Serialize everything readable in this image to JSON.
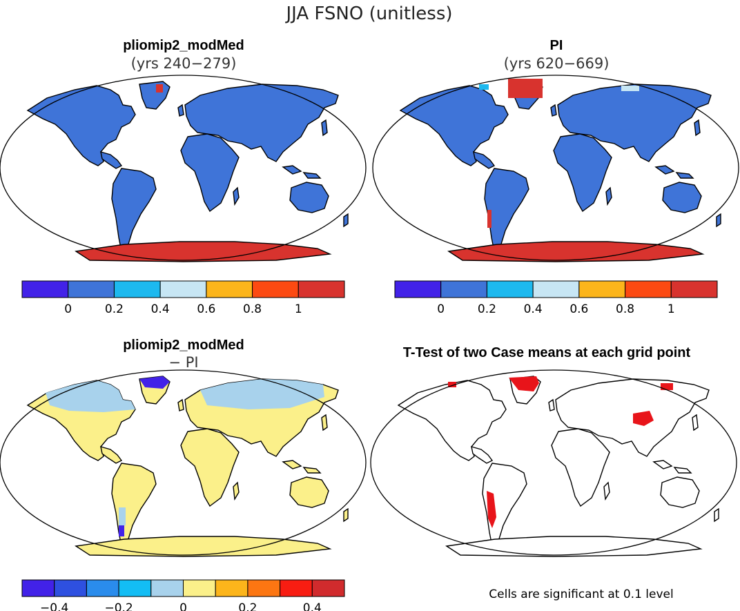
{
  "title": "JJA FSNO (unitless)",
  "panels": [
    {
      "id": "p1",
      "title": "pliomip2_modMed",
      "subtitle": "(yrs 240−279)",
      "land_color": "#3f74d8",
      "antarctica_color": "#d8332e",
      "highlights": [
        "#d8332e"
      ]
    },
    {
      "id": "p2",
      "title": "PI",
      "subtitle": "(yrs 620−669)",
      "land_color": "#3f74d8",
      "antarctica_color": "#d8332e",
      "highlights": [
        "#d8332e",
        "#1db9ef"
      ]
    },
    {
      "id": "p3",
      "title": "pliomip2_modMed",
      "subtitle": "− PI",
      "land_color": "#fbf08a",
      "antarctica_color": "#fbf08a",
      "highlights": [
        "#a8d2ec",
        "#4222e8"
      ]
    },
    {
      "id": "p4",
      "title": "T-Test of two Case means at each grid point",
      "subtitle": "",
      "land_color": "#ffffff",
      "antarctica_color": "#ffffff",
      "highlights": [
        "#e8141a"
      ],
      "note": "Cells are significant at 0.1 level"
    }
  ],
  "colorbars": [
    {
      "id": "cb1",
      "colors": [
        "#4222e8",
        "#3f74d8",
        "#1db9ef",
        "#c7e6f4",
        "#fcb51b",
        "#fc4a12",
        "#d8332e"
      ],
      "ticks": [
        "0",
        "0.2",
        "0.4",
        "0.6",
        "0.8",
        "1"
      ]
    },
    {
      "id": "cb2",
      "colors": [
        "#4222e8",
        "#3f74d8",
        "#1db9ef",
        "#c7e6f4",
        "#fcb51b",
        "#fc4a12",
        "#d8332e"
      ],
      "ticks": [
        "0",
        "0.2",
        "0.4",
        "0.6",
        "0.8",
        "1"
      ]
    },
    {
      "id": "cb3",
      "colors": [
        "#4222e8",
        "#2e50e0",
        "#2a8cec",
        "#13bdf4",
        "#a8d2ec",
        "#fbf08a",
        "#fcb51b",
        "#fc7612",
        "#f81d12",
        "#d12b2d"
      ],
      "ticks": [
        "−0.4",
        "−0.2",
        "0",
        "0.2",
        "0.4"
      ]
    }
  ]
}
